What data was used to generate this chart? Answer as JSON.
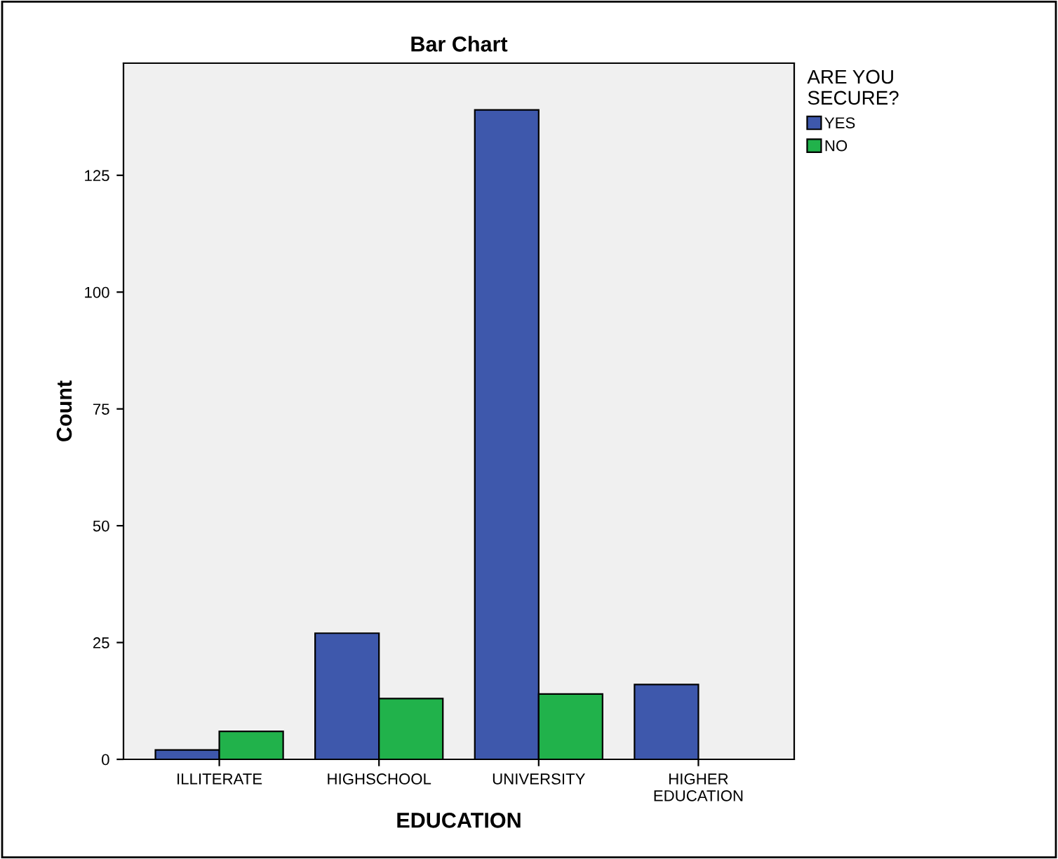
{
  "chart_data": {
    "type": "bar",
    "title": "Bar Chart",
    "xlabel": "EDUCATION",
    "ylabel": "Count",
    "legend_title": "ARE YOU\nSECURE?",
    "categories": [
      "ILLITERATE",
      "HIGHSCHOOL",
      "UNIVERSITY",
      "HIGHER\nEDUCATION"
    ],
    "series": [
      {
        "name": "YES",
        "color": "#3e58ac",
        "values": [
          2,
          27,
          139,
          16
        ]
      },
      {
        "name": "NO",
        "color": "#21b24b",
        "values": [
          6,
          13,
          14,
          null
        ]
      }
    ],
    "ylim": [
      0,
      149
    ],
    "yticks": [
      0,
      25,
      50,
      75,
      100,
      125
    ],
    "grid": false,
    "legend": "top right"
  }
}
